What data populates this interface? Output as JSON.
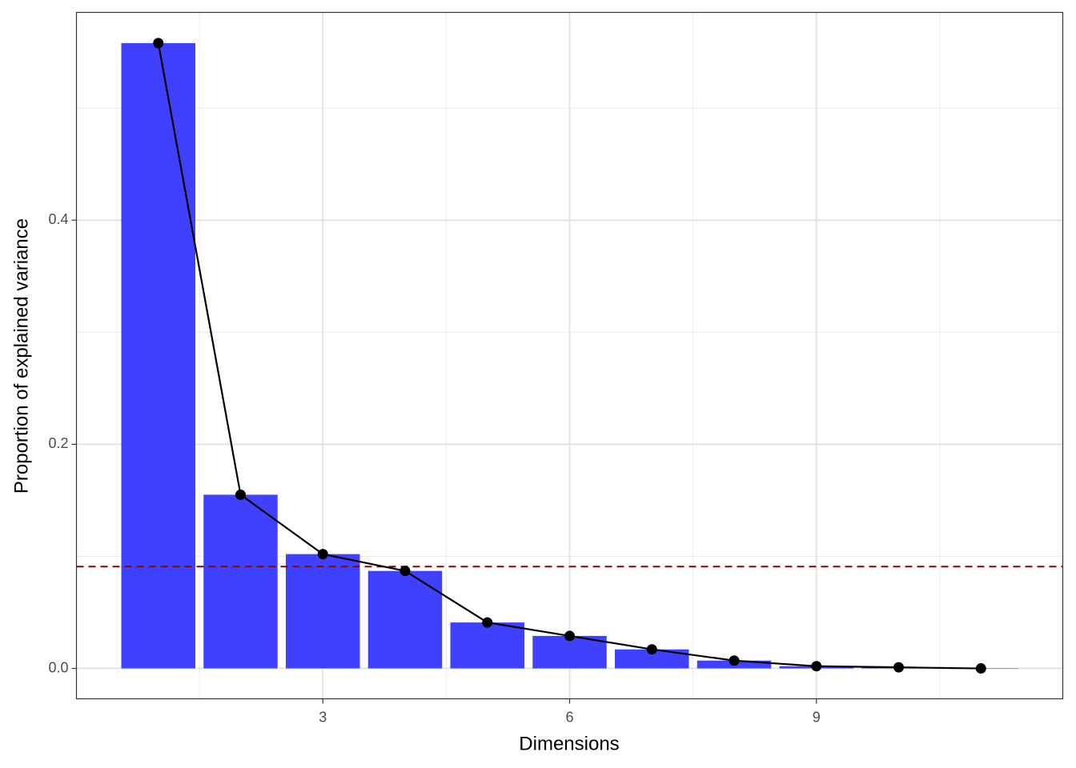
{
  "chart_data": {
    "type": "bar",
    "x_label": "Dimensions",
    "y_label": "Proportion of explained variance",
    "x": [
      1,
      2,
      3,
      4,
      5,
      6,
      7,
      8,
      9,
      10,
      11
    ],
    "values": [
      0.558,
      0.155,
      0.102,
      0.087,
      0.041,
      0.029,
      0.017,
      0.007,
      0.002,
      0.001,
      0.0
    ],
    "color": "#4040ff",
    "line_color": "#000000",
    "bar_width": 0.9,
    "reference_line": {
      "value": 0.0909,
      "color": "#8b0000",
      "dashed": true
    },
    "xlim": [
      0.005,
      11.995
    ],
    "ylim": [
      -0.0271,
      0.5854
    ],
    "xticks": [
      3,
      6,
      9
    ],
    "yticks": [
      {
        "value": 0,
        "label": "0.0"
      },
      {
        "value": 0.2,
        "label": "0.2"
      },
      {
        "value": 0.4,
        "label": "0.4"
      }
    ],
    "x_minor_grid": [
      1.5,
      4.5,
      7.5,
      10.5
    ],
    "y_minor_grid": [
      0.1,
      0.3,
      0.5
    ],
    "grid": true
  }
}
